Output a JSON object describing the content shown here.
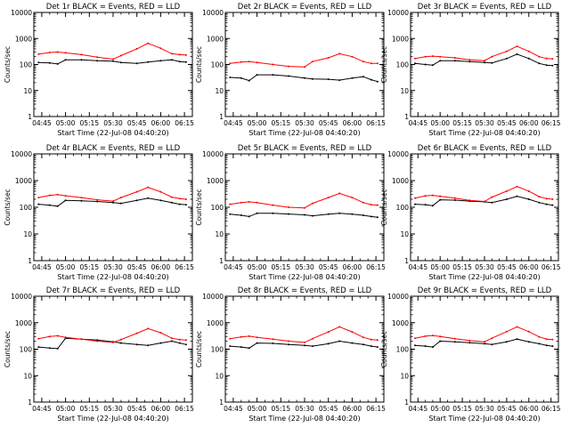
{
  "figure": {
    "colors": {
      "events": "#000000",
      "lld": "#ff0000",
      "background": "#ffffff"
    }
  },
  "chart_data": [
    {
      "type": "line",
      "title": "Det 1r BLACK = Events, RED = LLD",
      "xlabel": "Start Time (22-Jul-08 04:40:20)",
      "ylabel": "Counts/sec",
      "y_scale": "log",
      "ylim": [
        1,
        10000
      ],
      "y_ticks": [
        "1",
        "10",
        "100",
        "1000",
        "10000"
      ],
      "x_ticks": [
        "04:45",
        "05:00",
        "05:15",
        "05:30",
        "05:45",
        "06:00",
        "06:15"
      ],
      "x_range": [
        "04:40",
        "06:20"
      ],
      "grid": false,
      "series": [
        {
          "name": "Events",
          "color": "#000000",
          "x": [
            "04:43",
            "04:50",
            "04:55",
            "05:00",
            "05:10",
            "05:20",
            "05:30",
            "05:35",
            "05:45",
            "05:52",
            "06:00",
            "06:07",
            "06:12",
            "06:16"
          ],
          "y": [
            120,
            115,
            105,
            150,
            150,
            140,
            135,
            120,
            110,
            125,
            140,
            150,
            130,
            125
          ]
        },
        {
          "name": "LLD",
          "color": "#ff0000",
          "x": [
            "04:43",
            "04:50",
            "04:55",
            "05:00",
            "05:10",
            "05:20",
            "05:30",
            "05:35",
            "05:45",
            "05:52",
            "06:00",
            "06:07",
            "06:12",
            "06:16"
          ],
          "y": [
            250,
            290,
            300,
            280,
            240,
            190,
            160,
            220,
            400,
            650,
            420,
            260,
            240,
            230
          ]
        }
      ]
    },
    {
      "type": "line",
      "title": "Det 2r BLACK = Events, RED = LLD",
      "xlabel": "Start Time (22-Jul-08 04:40:20)",
      "ylabel": "Counts/sec",
      "y_scale": "log",
      "ylim": [
        1,
        10000
      ],
      "y_ticks": [
        "1",
        "10",
        "100",
        "1000",
        "10000"
      ],
      "x_ticks": [
        "04:45",
        "05:00",
        "05:15",
        "05:30",
        "05:45",
        "06:00",
        "06:15"
      ],
      "x_range": [
        "04:40",
        "06:20"
      ],
      "grid": false,
      "series": [
        {
          "name": "Events",
          "color": "#000000",
          "x": [
            "04:43",
            "04:50",
            "04:55",
            "05:00",
            "05:10",
            "05:20",
            "05:30",
            "05:35",
            "05:45",
            "05:52",
            "06:00",
            "06:07",
            "06:12",
            "06:16"
          ],
          "y": [
            32,
            30,
            24,
            40,
            40,
            36,
            30,
            28,
            27,
            25,
            30,
            34,
            26,
            22
          ]
        },
        {
          "name": "LLD",
          "color": "#ff0000",
          "x": [
            "04:43",
            "04:50",
            "04:55",
            "05:00",
            "05:10",
            "05:20",
            "05:30",
            "05:35",
            "05:45",
            "05:52",
            "06:00",
            "06:07",
            "06:12",
            "06:16"
          ],
          "y": [
            110,
            125,
            130,
            120,
            100,
            85,
            80,
            130,
            180,
            260,
            200,
            130,
            110,
            110
          ]
        }
      ]
    },
    {
      "type": "line",
      "title": "Det 3r BLACK = Events, RED = LLD",
      "xlabel": "Start Time (22-Jul-08 04:40:20)",
      "ylabel": "Counts/sec",
      "y_scale": "log",
      "ylim": [
        1,
        10000
      ],
      "y_ticks": [
        "1",
        "10",
        "100",
        "1000",
        "10000"
      ],
      "x_ticks": [
        "04:45",
        "05:00",
        "05:15",
        "05:30",
        "05:45",
        "06:00",
        "06:15"
      ],
      "x_range": [
        "04:40",
        "06:20"
      ],
      "grid": false,
      "series": [
        {
          "name": "Events",
          "color": "#000000",
          "x": [
            "04:43",
            "04:50",
            "04:55",
            "05:00",
            "05:10",
            "05:20",
            "05:30",
            "05:35",
            "05:45",
            "05:52",
            "06:00",
            "06:07",
            "06:12",
            "06:16"
          ],
          "y": [
            110,
            100,
            95,
            140,
            140,
            130,
            120,
            115,
            170,
            250,
            170,
            110,
            95,
            90
          ]
        },
        {
          "name": "LLD",
          "color": "#ff0000",
          "x": [
            "04:43",
            "04:50",
            "04:55",
            "05:00",
            "05:10",
            "05:20",
            "05:30",
            "05:35",
            "05:45",
            "05:52",
            "06:00",
            "06:07",
            "06:12",
            "06:16"
          ],
          "y": [
            170,
            200,
            210,
            200,
            180,
            150,
            140,
            200,
            320,
            500,
            320,
            200,
            170,
            165
          ]
        }
      ]
    },
    {
      "type": "line",
      "title": "Det 4r BLACK = Events, RED = LLD",
      "xlabel": "Start Time (22-Jul-08 04:40:20)",
      "ylabel": "Counts/sec",
      "y_scale": "log",
      "ylim": [
        1,
        10000
      ],
      "y_ticks": [
        "1",
        "10",
        "100",
        "1000",
        "10000"
      ],
      "x_ticks": [
        "04:45",
        "05:00",
        "05:15",
        "05:30",
        "05:45",
        "06:00",
        "06:15"
      ],
      "x_range": [
        "04:40",
        "06:20"
      ],
      "grid": false,
      "series": [
        {
          "name": "Events",
          "color": "#000000",
          "x": [
            "04:43",
            "04:50",
            "04:55",
            "05:00",
            "05:10",
            "05:20",
            "05:30",
            "05:35",
            "05:45",
            "05:52",
            "06:00",
            "06:07",
            "06:12",
            "06:16"
          ],
          "y": [
            130,
            120,
            110,
            180,
            175,
            165,
            150,
            140,
            180,
            220,
            180,
            150,
            130,
            125
          ]
        },
        {
          "name": "LLD",
          "color": "#ff0000",
          "x": [
            "04:43",
            "04:50",
            "04:55",
            "05:00",
            "05:10",
            "05:20",
            "05:30",
            "05:35",
            "05:45",
            "05:52",
            "06:00",
            "06:07",
            "06:12",
            "06:16"
          ],
          "y": [
            230,
            280,
            300,
            270,
            230,
            190,
            170,
            230,
            380,
            560,
            380,
            240,
            210,
            200
          ]
        }
      ]
    },
    {
      "type": "line",
      "title": "Det 5r BLACK = Events, RED = LLD",
      "xlabel": "Start Time (22-Jul-08 04:40:20)",
      "ylabel": "Counts/sec",
      "y_scale": "log",
      "ylim": [
        1,
        10000
      ],
      "y_ticks": [
        "1",
        "10",
        "100",
        "1000",
        "10000"
      ],
      "x_ticks": [
        "04:45",
        "05:00",
        "05:15",
        "05:30",
        "05:45",
        "06:00",
        "06:15"
      ],
      "x_range": [
        "04:40",
        "06:20"
      ],
      "grid": false,
      "series": [
        {
          "name": "Events",
          "color": "#000000",
          "x": [
            "04:43",
            "04:50",
            "04:55",
            "05:00",
            "05:10",
            "05:20",
            "05:30",
            "05:35",
            "05:45",
            "05:52",
            "06:00",
            "06:07",
            "06:12",
            "06:16"
          ],
          "y": [
            55,
            50,
            45,
            60,
            60,
            56,
            52,
            48,
            55,
            60,
            55,
            50,
            45,
            42
          ]
        },
        {
          "name": "LLD",
          "color": "#ff0000",
          "x": [
            "04:43",
            "04:50",
            "04:55",
            "05:00",
            "05:10",
            "05:20",
            "05:30",
            "05:35",
            "05:45",
            "05:52",
            "06:00",
            "06:07",
            "06:12",
            "06:16"
          ],
          "y": [
            130,
            150,
            160,
            150,
            120,
            100,
            95,
            140,
            230,
            330,
            230,
            150,
            125,
            120
          ]
        }
      ]
    },
    {
      "type": "line",
      "title": "Det 6r BLACK = Events, RED = LLD",
      "xlabel": "Start Time (22-Jul-08 04:40:20)",
      "ylabel": "Counts/sec",
      "y_scale": "log",
      "ylim": [
        1,
        10000
      ],
      "y_ticks": [
        "1",
        "10",
        "100",
        "1000",
        "10000"
      ],
      "x_ticks": [
        "04:45",
        "05:00",
        "05:15",
        "05:30",
        "05:45",
        "06:00",
        "06:15"
      ],
      "x_range": [
        "04:40",
        "06:20"
      ],
      "grid": false,
      "series": [
        {
          "name": "Events",
          "color": "#000000",
          "x": [
            "04:43",
            "04:50",
            "04:55",
            "05:00",
            "05:10",
            "05:20",
            "05:30",
            "05:35",
            "05:45",
            "05:52",
            "06:00",
            "06:07",
            "06:12",
            "06:16"
          ],
          "y": [
            130,
            125,
            115,
            190,
            185,
            170,
            160,
            150,
            200,
            260,
            200,
            150,
            130,
            120
          ]
        },
        {
          "name": "LLD",
          "color": "#ff0000",
          "x": [
            "04:43",
            "04:50",
            "04:55",
            "05:00",
            "05:10",
            "05:20",
            "05:30",
            "05:35",
            "05:45",
            "05:52",
            "06:00",
            "06:07",
            "06:12",
            "06:16"
          ],
          "y": [
            220,
            270,
            280,
            260,
            220,
            180,
            165,
            240,
            400,
            600,
            400,
            250,
            210,
            200
          ]
        }
      ]
    },
    {
      "type": "line",
      "title": "Det 7r BLACK = Events, RED = LLD",
      "xlabel": "Start Time (22-Jul-08 04:40:20)",
      "ylabel": "Counts/sec",
      "y_scale": "log",
      "ylim": [
        1,
        10000
      ],
      "y_ticks": [
        "1",
        "10",
        "100",
        "1000",
        "10000"
      ],
      "x_ticks": [
        "04:45",
        "05:00",
        "05:15",
        "05:30",
        "05:45",
        "06:00",
        "06:15"
      ],
      "x_range": [
        "04:40",
        "06:20"
      ],
      "grid": false,
      "series": [
        {
          "name": "Events",
          "color": "#000000",
          "x": [
            "04:43",
            "04:50",
            "04:55",
            "05:00",
            "05:10",
            "05:20",
            "05:30",
            "05:35",
            "05:45",
            "05:52",
            "06:00",
            "06:07",
            "06:12",
            "06:16"
          ],
          "y": [
            120,
            110,
            105,
            260,
            240,
            220,
            190,
            170,
            150,
            140,
            170,
            200,
            170,
            150
          ]
        },
        {
          "name": "LLD",
          "color": "#ff0000",
          "x": [
            "04:43",
            "04:50",
            "04:55",
            "05:00",
            "05:10",
            "05:20",
            "05:30",
            "05:35",
            "05:45",
            "05:52",
            "06:00",
            "06:07",
            "06:12",
            "06:16"
          ],
          "y": [
            250,
            300,
            320,
            280,
            240,
            200,
            180,
            230,
            400,
            600,
            420,
            260,
            230,
            220
          ]
        }
      ]
    },
    {
      "type": "line",
      "title": "Det 8r BLACK = Events, RED = LLD",
      "xlabel": "Start Time (22-Jul-08 04:40:20)",
      "ylabel": "Counts/sec",
      "y_scale": "log",
      "ylim": [
        1,
        10000
      ],
      "y_ticks": [
        "1",
        "10",
        "100",
        "1000",
        "10000"
      ],
      "x_ticks": [
        "04:45",
        "05:00",
        "05:15",
        "05:30",
        "05:45",
        "06:00",
        "06:15"
      ],
      "x_range": [
        "04:40",
        "06:20"
      ],
      "grid": false,
      "series": [
        {
          "name": "Events",
          "color": "#000000",
          "x": [
            "04:43",
            "04:50",
            "04:55",
            "05:00",
            "05:10",
            "05:20",
            "05:30",
            "05:35",
            "05:45",
            "05:52",
            "06:00",
            "06:07",
            "06:12",
            "06:16"
          ],
          "y": [
            130,
            120,
            110,
            170,
            165,
            150,
            140,
            130,
            160,
            200,
            170,
            150,
            130,
            120
          ]
        },
        {
          "name": "LLD",
          "color": "#ff0000",
          "x": [
            "04:43",
            "04:50",
            "04:55",
            "05:00",
            "05:10",
            "05:20",
            "05:30",
            "05:35",
            "05:45",
            "05:52",
            "06:00",
            "06:07",
            "06:12",
            "06:16"
          ],
          "y": [
            250,
            290,
            310,
            280,
            240,
            200,
            180,
            250,
            450,
            700,
            450,
            280,
            230,
            220
          ]
        }
      ]
    },
    {
      "type": "line",
      "title": "Det 9r BLACK = Events, RED = LLD",
      "xlabel": "Start Time (22-Jul-08 04:40:20)",
      "ylabel": "Counts/sec",
      "y_scale": "log",
      "ylim": [
        1,
        10000
      ],
      "y_ticks": [
        "1",
        "10",
        "100",
        "1000",
        "10000"
      ],
      "x_ticks": [
        "04:45",
        "05:00",
        "05:15",
        "05:30",
        "05:45",
        "06:00",
        "06:15"
      ],
      "x_range": [
        "04:40",
        "06:20"
      ],
      "grid": false,
      "series": [
        {
          "name": "Events",
          "color": "#000000",
          "x": [
            "04:43",
            "04:50",
            "04:55",
            "05:00",
            "05:10",
            "05:20",
            "05:30",
            "05:35",
            "05:45",
            "05:52",
            "06:00",
            "06:07",
            "06:12",
            "06:16"
          ],
          "y": [
            140,
            130,
            120,
            200,
            190,
            175,
            160,
            150,
            190,
            240,
            190,
            160,
            140,
            130
          ]
        },
        {
          "name": "LLD",
          "color": "#ff0000",
          "x": [
            "04:43",
            "04:50",
            "04:55",
            "05:00",
            "05:10",
            "05:20",
            "05:30",
            "05:35",
            "05:45",
            "05:52",
            "06:00",
            "06:07",
            "06:12",
            "06:16"
          ],
          "y": [
            260,
            310,
            330,
            300,
            250,
            210,
            190,
            260,
            460,
            700,
            460,
            290,
            240,
            230
          ]
        }
      ]
    }
  ]
}
